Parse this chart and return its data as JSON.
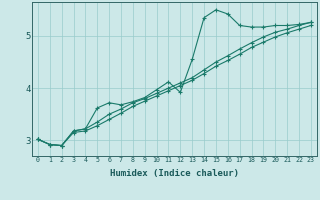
{
  "xlabel": "Humidex (Indice chaleur)",
  "bg_color": "#cce8e8",
  "grid_color": "#99cccc",
  "line_color": "#1a7a6a",
  "xlim": [
    -0.5,
    23.5
  ],
  "ylim": [
    2.7,
    5.65
  ],
  "yticks": [
    3,
    4,
    5
  ],
  "xticks": [
    0,
    1,
    2,
    3,
    4,
    5,
    6,
    7,
    8,
    9,
    10,
    11,
    12,
    13,
    14,
    15,
    16,
    17,
    18,
    19,
    20,
    21,
    22,
    23
  ],
  "curve1_x": [
    0,
    1,
    2,
    3,
    4,
    5,
    6,
    7,
    8,
    9,
    10,
    11,
    12,
    13,
    14,
    15,
    16,
    17,
    18,
    19,
    20,
    21,
    22,
    23
  ],
  "curve1_y": [
    3.02,
    2.92,
    2.9,
    3.18,
    3.22,
    3.62,
    3.72,
    3.68,
    3.74,
    3.82,
    3.97,
    4.12,
    3.92,
    4.55,
    5.35,
    5.5,
    5.42,
    5.2,
    5.17,
    5.17,
    5.2,
    5.2,
    5.22,
    5.26
  ],
  "curve2_x": [
    0,
    1,
    2,
    3,
    4,
    5,
    6,
    7,
    8,
    9,
    10,
    11,
    12,
    13,
    14,
    15,
    16,
    17,
    18,
    19,
    20,
    21,
    22,
    23
  ],
  "curve2_y": [
    3.02,
    2.92,
    2.9,
    3.18,
    3.22,
    3.35,
    3.5,
    3.6,
    3.72,
    3.8,
    3.9,
    4.0,
    4.1,
    4.2,
    4.35,
    4.5,
    4.62,
    4.75,
    4.87,
    4.98,
    5.07,
    5.13,
    5.2,
    5.26
  ],
  "curve3_x": [
    0,
    1,
    2,
    3,
    4,
    5,
    6,
    7,
    8,
    9,
    10,
    11,
    12,
    13,
    14,
    15,
    16,
    17,
    18,
    19,
    20,
    21,
    22,
    23
  ],
  "curve3_y": [
    3.02,
    2.92,
    2.9,
    3.15,
    3.18,
    3.28,
    3.4,
    3.52,
    3.65,
    3.75,
    3.85,
    3.95,
    4.05,
    4.15,
    4.28,
    4.42,
    4.53,
    4.65,
    4.78,
    4.88,
    4.98,
    5.06,
    5.13,
    5.2
  ]
}
